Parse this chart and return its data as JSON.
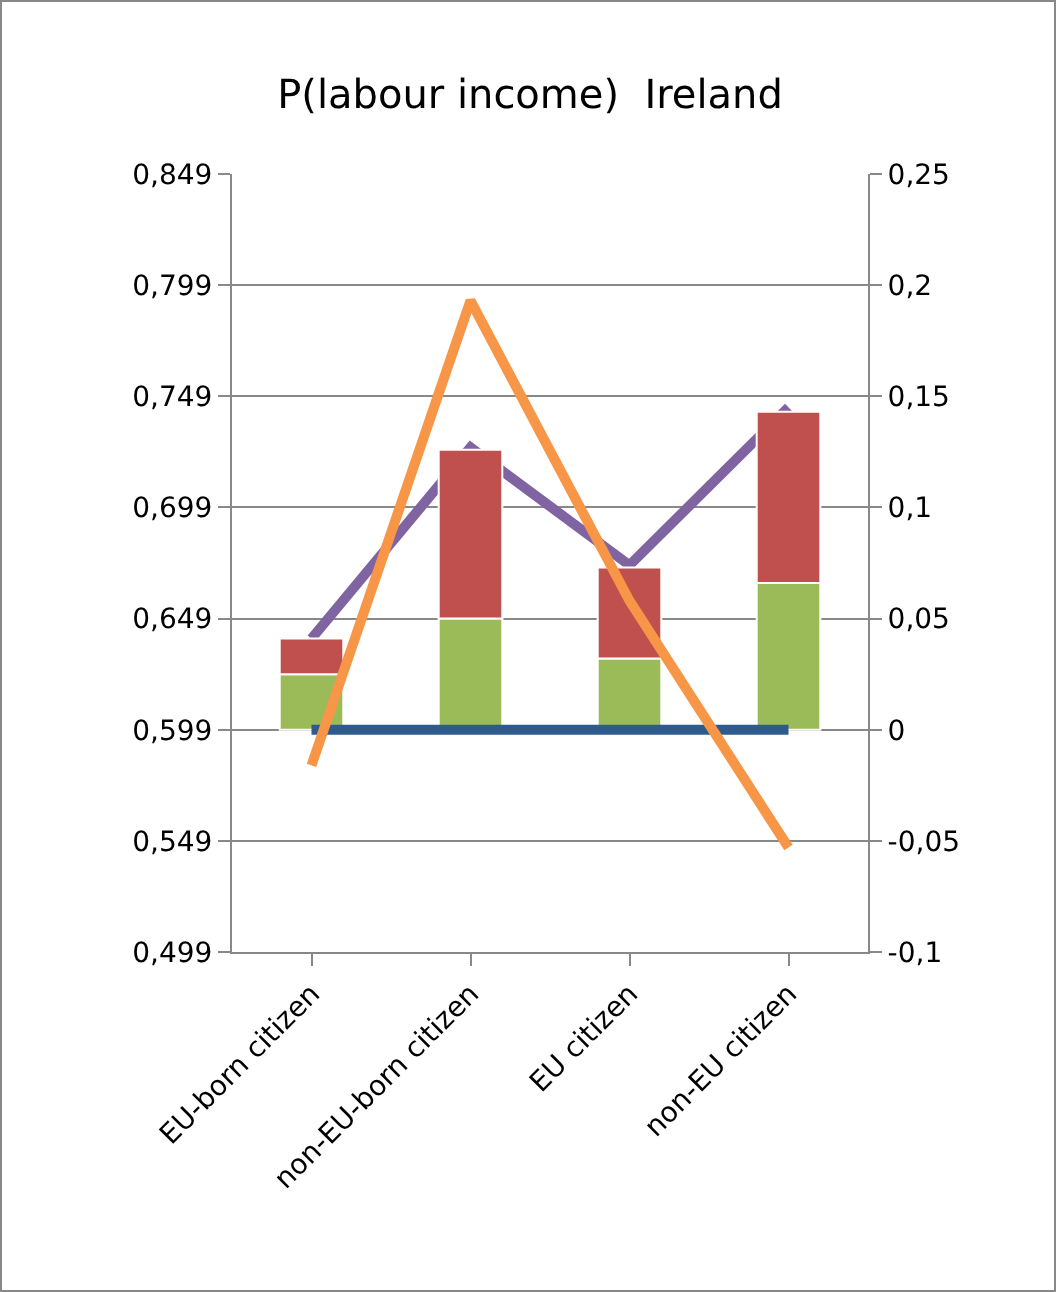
{
  "chart_data": {
    "type": "bar",
    "title": "P(labour income)  Ireland",
    "categories": [
      "EU-born citizen",
      "non-EU-born citizen",
      "EU citizen",
      "non-EU citizen"
    ],
    "stacked": true,
    "series": [
      {
        "axis": "y2",
        "color": "#9bbb59",
        "values": [
          0.025,
          0.05,
          0.032,
          0.066
        ]
      },
      {
        "axis": "y2",
        "color": "#c0504d",
        "values": [
          0.016,
          0.076,
          0.041,
          0.077
        ]
      },
      {
        "type": "line",
        "axis": "y2",
        "color": "#2f5b8c",
        "values": [
          0,
          0,
          0,
          0
        ]
      },
      {
        "type": "line",
        "axis": "y",
        "color": "#8064a2",
        "values": [
          0.64,
          0.726,
          0.673,
          0.744
        ]
      },
      {
        "type": "line",
        "axis": "y2",
        "color": "#f79646",
        "values": [
          -0.016,
          0.193,
          0.058,
          -0.053
        ]
      }
    ],
    "ylim": [
      0.499,
      0.849
    ],
    "yticks": [
      {
        "value": 0.499,
        "label": "0,499"
      },
      {
        "value": 0.549,
        "label": "0,549"
      },
      {
        "value": 0.599,
        "label": "0,599"
      },
      {
        "value": 0.649,
        "label": "0,649"
      },
      {
        "value": 0.699,
        "label": "0,699"
      },
      {
        "value": 0.749,
        "label": "0,749"
      },
      {
        "value": 0.799,
        "label": "0,799"
      },
      {
        "value": 0.849,
        "label": "0,849"
      }
    ],
    "y2lim": [
      -0.1,
      0.25
    ],
    "y2ticks": [
      {
        "value": -0.1,
        "label": "-0,1"
      },
      {
        "value": -0.05,
        "label": "-0,05"
      },
      0,
      {
        "value": 0.05,
        "label": "0,05"
      },
      {
        "value": 0.1,
        "label": "0,1"
      },
      {
        "value": 0.15,
        "label": "0,15"
      },
      {
        "value": 0.2,
        "label": "0,2"
      },
      {
        "value": 0.25,
        "label": "0,25"
      }
    ],
    "grid": "y",
    "marker": "none",
    "line_style": "solid"
  }
}
